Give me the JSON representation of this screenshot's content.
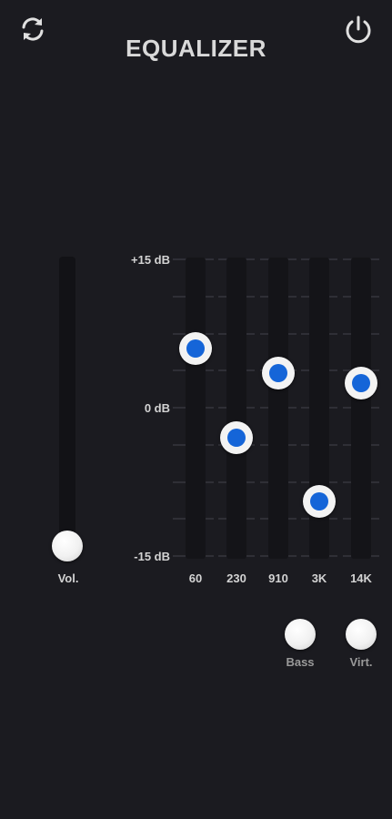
{
  "header": {
    "title": "EQUALIZER",
    "refresh_icon": "refresh-icon",
    "power_icon": "power-icon"
  },
  "volume": {
    "label": "Vol.",
    "level": 0.05
  },
  "eq": {
    "db_max_label": "+15 dB",
    "db_mid_label": "0 dB",
    "db_min_label": "-15 dB",
    "range_db": [
      -15,
      15
    ],
    "bands": [
      {
        "freq": "60",
        "gain_db": 6
      },
      {
        "freq": "230",
        "gain_db": -3
      },
      {
        "freq": "910",
        "gain_db": 3.5
      },
      {
        "freq": "3K",
        "gain_db": -9.5
      },
      {
        "freq": "14K",
        "gain_db": 2.5
      }
    ],
    "knob_color": "#1565d8"
  },
  "effects": {
    "bass_label": "Bass",
    "virt_label": "Virt."
  }
}
